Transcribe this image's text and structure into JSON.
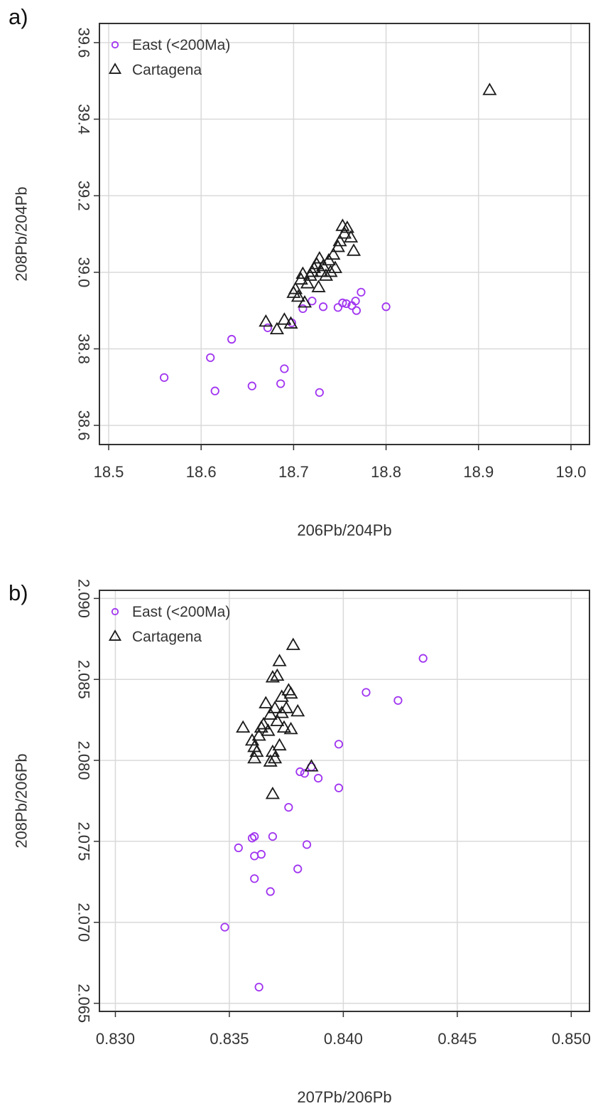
{
  "chart_data": [
    {
      "panel_label": "a)",
      "type": "scatter",
      "title": "",
      "xlabel": "206Pb/204Pb",
      "ylabel": "208Pb/204Pb",
      "xlim": [
        18.49,
        19.02
      ],
      "ylim": [
        38.55,
        39.65
      ],
      "xticks": [
        18.5,
        18.6,
        18.7,
        18.8,
        18.9,
        19.0
      ],
      "xtick_labels": [
        "18.5",
        "18.6",
        "18.7",
        "18.8",
        "18.9",
        "19.0"
      ],
      "yticks": [
        38.6,
        38.8,
        39.0,
        39.2,
        39.4,
        39.6
      ],
      "ytick_labels": [
        "38.6",
        "38.8",
        "39.0",
        "39.2",
        "39.4",
        "39.6"
      ],
      "grid": true,
      "legend_position": "top-left",
      "series": [
        {
          "name": "East (<200Ma)",
          "marker": "circle",
          "color": "#a033f0",
          "points": [
            [
              18.56,
              38.725
            ],
            [
              18.61,
              38.777
            ],
            [
              18.615,
              38.69
            ],
            [
              18.633,
              38.825
            ],
            [
              18.655,
              38.703
            ],
            [
              18.672,
              38.855
            ],
            [
              18.686,
              38.709
            ],
            [
              18.69,
              38.748
            ],
            [
              18.698,
              38.868
            ],
            [
              18.71,
              38.905
            ],
            [
              18.72,
              38.925
            ],
            [
              18.728,
              38.686
            ],
            [
              18.732,
              38.91
            ],
            [
              18.748,
              38.908
            ],
            [
              18.753,
              38.92
            ],
            [
              18.757,
              38.918
            ],
            [
              18.763,
              38.913
            ],
            [
              18.767,
              38.925
            ],
            [
              18.768,
              38.9
            ],
            [
              18.773,
              38.948
            ],
            [
              18.8,
              38.91
            ]
          ]
        },
        {
          "name": "Cartagena",
          "marker": "triangle",
          "color": "#1a1a1a",
          "points": [
            [
              18.67,
              38.87
            ],
            [
              18.682,
              38.85
            ],
            [
              18.69,
              38.875
            ],
            [
              18.697,
              38.865
            ],
            [
              18.7,
              38.945
            ],
            [
              18.702,
              38.955
            ],
            [
              18.705,
              38.935
            ],
            [
              18.708,
              38.98
            ],
            [
              18.71,
              38.995
            ],
            [
              18.712,
              38.92
            ],
            [
              18.715,
              38.97
            ],
            [
              18.718,
              38.99
            ],
            [
              18.72,
              39.0
            ],
            [
              18.722,
              39.01
            ],
            [
              18.725,
              39.02
            ],
            [
              18.727,
              38.96
            ],
            [
              18.728,
              39.035
            ],
            [
              18.73,
              39.0
            ],
            [
              18.732,
              39.015
            ],
            [
              18.735,
              38.99
            ],
            [
              18.738,
              39.03
            ],
            [
              18.74,
              39.0
            ],
            [
              18.743,
              39.045
            ],
            [
              18.745,
              39.01
            ],
            [
              18.748,
              39.065
            ],
            [
              18.75,
              39.08
            ],
            [
              18.753,
              39.12
            ],
            [
              18.755,
              39.1
            ],
            [
              18.758,
              39.115
            ],
            [
              18.762,
              39.09
            ],
            [
              18.765,
              39.055
            ],
            [
              18.912,
              39.475
            ]
          ]
        }
      ]
    },
    {
      "panel_label": "b)",
      "type": "scatter",
      "title": "",
      "xlabel": "207Pb/206Pb",
      "ylabel": "208Pb/206Pb",
      "xlim": [
        0.8293,
        0.8508
      ],
      "ylim": [
        2.0645,
        2.0905
      ],
      "xticks": [
        0.83,
        0.835,
        0.84,
        0.845,
        0.85
      ],
      "xtick_labels": [
        "0.830",
        "0.835",
        "0.840",
        "0.845",
        "0.850"
      ],
      "yticks": [
        2.065,
        2.07,
        2.075,
        2.08,
        2.085,
        2.09
      ],
      "ytick_labels": [
        "2.065",
        "2.070",
        "2.075",
        "2.080",
        "2.085",
        "2.090"
      ],
      "grid": true,
      "legend_position": "top-left",
      "series": [
        {
          "name": "East (<200Ma)",
          "marker": "circle",
          "color": "#a033f0",
          "points": [
            [
              0.8348,
              2.0697
            ],
            [
              0.8354,
              2.0746
            ],
            [
              0.836,
              2.0752
            ],
            [
              0.8361,
              2.0753
            ],
            [
              0.8361,
              2.0741
            ],
            [
              0.8361,
              2.0727
            ],
            [
              0.8363,
              2.066
            ],
            [
              0.8364,
              2.0742
            ],
            [
              0.8368,
              2.0719
            ],
            [
              0.8369,
              2.0753
            ],
            [
              0.8376,
              2.0771
            ],
            [
              0.838,
              2.0733
            ],
            [
              0.8381,
              2.0793
            ],
            [
              0.8383,
              2.0792
            ],
            [
              0.8384,
              2.0748
            ],
            [
              0.8386,
              2.0796
            ],
            [
              0.8389,
              2.0789
            ],
            [
              0.8398,
              2.0783
            ],
            [
              0.8398,
              2.081
            ],
            [
              0.841,
              2.0842
            ],
            [
              0.8424,
              2.0837
            ],
            [
              0.8435,
              2.0863
            ]
          ]
        },
        {
          "name": "Cartagena",
          "marker": "triangle",
          "color": "#1a1a1a",
          "points": [
            [
              0.8356,
              2.082
            ],
            [
              0.836,
              2.0812
            ],
            [
              0.8361,
              2.0801
            ],
            [
              0.8361,
              2.0808
            ],
            [
              0.8362,
              2.0805
            ],
            [
              0.8363,
              2.0815
            ],
            [
              0.8364,
              2.082
            ],
            [
              0.8365,
              2.0822
            ],
            [
              0.8366,
              2.0835
            ],
            [
              0.8367,
              2.0818
            ],
            [
              0.8368,
              2.0828
            ],
            [
              0.8368,
              2.0799
            ],
            [
              0.8369,
              2.0805
            ],
            [
              0.8369,
              2.0851
            ],
            [
              0.8369,
              2.0779
            ],
            [
              0.837,
              2.0832
            ],
            [
              0.837,
              2.0801
            ],
            [
              0.8371,
              2.0852
            ],
            [
              0.8371,
              2.0824
            ],
            [
              0.8372,
              2.0809
            ],
            [
              0.8372,
              2.0861
            ],
            [
              0.8373,
              2.0839
            ],
            [
              0.8373,
              2.0829
            ],
            [
              0.8374,
              2.082
            ],
            [
              0.8375,
              2.0832
            ],
            [
              0.8376,
              2.0843
            ],
            [
              0.8377,
              2.0841
            ],
            [
              0.8377,
              2.0819
            ],
            [
              0.8378,
              2.0871
            ],
            [
              0.838,
              2.083
            ],
            [
              0.8386,
              2.0796
            ]
          ]
        }
      ]
    }
  ]
}
